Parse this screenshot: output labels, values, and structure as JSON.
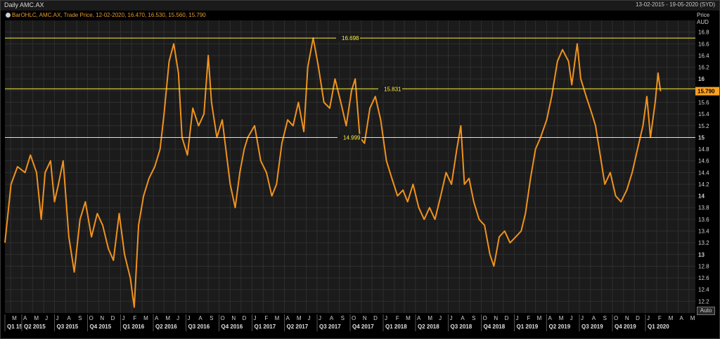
{
  "header": {
    "title": "Daily AMC.AX",
    "date_range": "13-02-2015 - 19-05-2020 (SYD)"
  },
  "legend": {
    "text": "BarOHLC, AMC.AX, Trade Price, 12-02-2020, 16.470, 16.530, 15.560, 15.790"
  },
  "axis": {
    "price_label": "Price",
    "currency": "AUD",
    "auto_label": "Auto"
  },
  "colors": {
    "background": "#000000",
    "grid": "#2e2e2e",
    "series": "#f0921e",
    "hline": "#ffef3a",
    "last_price_bg": "#ffa21e"
  },
  "chart_data": {
    "type": "line",
    "title": "Daily AMC.AX",
    "series_name": "AMC.AX",
    "ylabel": "Price AUD",
    "ylim": [
      12,
      17
    ],
    "y_ticks": [
      12.2,
      12.4,
      12.6,
      12.8,
      13,
      13.2,
      13.4,
      13.6,
      13.8,
      14,
      14.2,
      14.4,
      14.6,
      14.8,
      15,
      15.2,
      15.4,
      15.6,
      15.8,
      16,
      16.2,
      16.4,
      16.6,
      16.8
    ],
    "bold_y_ticks": [
      13,
      14,
      15,
      16
    ],
    "last_price": "15.790",
    "horizontal_lines": [
      {
        "value": 16.698,
        "label": "16.698"
      },
      {
        "value": 15.831,
        "label": "15.831"
      },
      {
        "value": 14.999,
        "label": "14.999"
      }
    ],
    "month_labels": [
      "M",
      "A",
      "M",
      "J",
      "J",
      "A",
      "S",
      "O",
      "N",
      "D",
      "J",
      "F",
      "M",
      "A",
      "M",
      "J",
      "J",
      "A",
      "S",
      "O",
      "N",
      "D",
      "J",
      "F",
      "M",
      "A",
      "M",
      "J",
      "J",
      "A",
      "S",
      "O",
      "N",
      "D",
      "J",
      "F",
      "M",
      "A",
      "M",
      "J",
      "J",
      "A",
      "S",
      "O",
      "N",
      "D",
      "J",
      "F",
      "M",
      "A",
      "M",
      "J",
      "J",
      "A",
      "S",
      "O",
      "N",
      "D",
      "J",
      "F",
      "M",
      "A",
      "M"
    ],
    "quarter_labels": [
      "Q1 15",
      "Q2 2015",
      "Q3 2015",
      "Q4 2015",
      "Q1 2016",
      "Q2 2016",
      "Q3 2016",
      "Q4 2016",
      "Q1 2017",
      "Q2 2017",
      "Q3 2017",
      "Q4 2017",
      "Q1 2018",
      "Q2 2018",
      "Q3 2018",
      "Q4 2018",
      "Q1 2019",
      "Q2 2019",
      "Q3 2019",
      "Q4 2019",
      "Q1 2020"
    ],
    "points": [
      [
        "2015-02-13",
        13.2
      ],
      [
        "2015-03-02",
        14.2
      ],
      [
        "2015-03-20",
        14.5
      ],
      [
        "2015-04-10",
        14.4
      ],
      [
        "2015-04-25",
        14.7
      ],
      [
        "2015-05-12",
        14.4
      ],
      [
        "2015-05-25",
        13.6
      ],
      [
        "2015-06-05",
        14.4
      ],
      [
        "2015-06-20",
        14.6
      ],
      [
        "2015-07-01",
        13.9
      ],
      [
        "2015-07-12",
        14.2
      ],
      [
        "2015-07-25",
        14.6
      ],
      [
        "2015-08-10",
        13.3
      ],
      [
        "2015-08-25",
        12.7
      ],
      [
        "2015-09-10",
        13.6
      ],
      [
        "2015-09-25",
        13.9
      ],
      [
        "2015-10-12",
        13.3
      ],
      [
        "2015-10-28",
        13.7
      ],
      [
        "2015-11-12",
        13.5
      ],
      [
        "2015-11-28",
        13.1
      ],
      [
        "2015-12-12",
        12.9
      ],
      [
        "2015-12-28",
        13.7
      ],
      [
        "2016-01-12",
        13.0
      ],
      [
        "2016-01-28",
        12.6
      ],
      [
        "2016-02-08",
        12.1
      ],
      [
        "2016-02-20",
        13.5
      ],
      [
        "2016-03-05",
        14.0
      ],
      [
        "2016-03-20",
        14.3
      ],
      [
        "2016-04-05",
        14.5
      ],
      [
        "2016-04-20",
        14.8
      ],
      [
        "2016-05-01",
        15.4
      ],
      [
        "2016-05-15",
        16.3
      ],
      [
        "2016-05-28",
        16.6
      ],
      [
        "2016-06-10",
        16.1
      ],
      [
        "2016-06-20",
        15.0
      ],
      [
        "2016-07-05",
        14.7
      ],
      [
        "2016-07-20",
        15.5
      ],
      [
        "2016-08-05",
        15.2
      ],
      [
        "2016-08-20",
        15.4
      ],
      [
        "2016-09-01",
        16.4
      ],
      [
        "2016-09-10",
        15.6
      ],
      [
        "2016-09-25",
        15.0
      ],
      [
        "2016-10-10",
        15.3
      ],
      [
        "2016-10-20",
        14.8
      ],
      [
        "2016-11-01",
        14.2
      ],
      [
        "2016-11-15",
        13.8
      ],
      [
        "2016-11-28",
        14.4
      ],
      [
        "2016-12-10",
        14.8
      ],
      [
        "2016-12-20",
        15.0
      ],
      [
        "2017-01-08",
        15.2
      ],
      [
        "2017-01-25",
        14.6
      ],
      [
        "2017-02-10",
        14.4
      ],
      [
        "2017-02-25",
        14.0
      ],
      [
        "2017-03-10",
        14.2
      ],
      [
        "2017-03-25",
        14.9
      ],
      [
        "2017-04-10",
        15.3
      ],
      [
        "2017-04-25",
        15.2
      ],
      [
        "2017-05-10",
        15.6
      ],
      [
        "2017-05-25",
        15.1
      ],
      [
        "2017-06-05",
        16.2
      ],
      [
        "2017-06-20",
        16.7
      ],
      [
        "2017-07-05",
        16.2
      ],
      [
        "2017-07-20",
        15.6
      ],
      [
        "2017-08-05",
        15.5
      ],
      [
        "2017-08-20",
        16.0
      ],
      [
        "2017-09-05",
        15.6
      ],
      [
        "2017-09-20",
        15.2
      ],
      [
        "2017-10-05",
        15.8
      ],
      [
        "2017-10-15",
        16.0
      ],
      [
        "2017-10-28",
        15.0
      ],
      [
        "2017-11-10",
        14.9
      ],
      [
        "2017-11-25",
        15.5
      ],
      [
        "2017-12-10",
        15.7
      ],
      [
        "2017-12-25",
        15.3
      ],
      [
        "2018-01-10",
        14.6
      ],
      [
        "2018-01-25",
        14.3
      ],
      [
        "2018-02-10",
        14.0
      ],
      [
        "2018-02-25",
        14.1
      ],
      [
        "2018-03-10",
        13.9
      ],
      [
        "2018-03-25",
        14.2
      ],
      [
        "2018-04-10",
        13.8
      ],
      [
        "2018-04-25",
        13.6
      ],
      [
        "2018-05-10",
        13.8
      ],
      [
        "2018-05-25",
        13.6
      ],
      [
        "2018-06-10",
        14.0
      ],
      [
        "2018-06-25",
        14.4
      ],
      [
        "2018-07-10",
        14.2
      ],
      [
        "2018-07-25",
        14.8
      ],
      [
        "2018-08-05",
        15.2
      ],
      [
        "2018-08-15",
        14.2
      ],
      [
        "2018-08-28",
        14.3
      ],
      [
        "2018-09-10",
        13.9
      ],
      [
        "2018-09-25",
        13.6
      ],
      [
        "2018-10-10",
        13.5
      ],
      [
        "2018-10-25",
        13.0
      ],
      [
        "2018-11-05",
        12.8
      ],
      [
        "2018-11-20",
        13.3
      ],
      [
        "2018-12-05",
        13.4
      ],
      [
        "2018-12-20",
        13.2
      ],
      [
        "2019-01-05",
        13.3
      ],
      [
        "2019-01-20",
        13.4
      ],
      [
        "2019-02-01",
        13.7
      ],
      [
        "2019-02-15",
        14.3
      ],
      [
        "2019-03-01",
        14.8
      ],
      [
        "2019-03-15",
        15.0
      ],
      [
        "2019-04-01",
        15.3
      ],
      [
        "2019-04-15",
        15.7
      ],
      [
        "2019-05-01",
        16.3
      ],
      [
        "2019-05-15",
        16.5
      ],
      [
        "2019-06-01",
        16.3
      ],
      [
        "2019-06-10",
        15.9
      ],
      [
        "2019-06-25",
        16.6
      ],
      [
        "2019-07-05",
        16.0
      ],
      [
        "2019-07-20",
        15.7
      ],
      [
        "2019-08-05",
        15.4
      ],
      [
        "2019-08-15",
        15.2
      ],
      [
        "2019-08-28",
        14.7
      ],
      [
        "2019-09-10",
        14.2
      ],
      [
        "2019-09-25",
        14.4
      ],
      [
        "2019-10-10",
        14.0
      ],
      [
        "2019-10-25",
        13.9
      ],
      [
        "2019-11-10",
        14.1
      ],
      [
        "2019-11-25",
        14.4
      ],
      [
        "2019-12-10",
        14.8
      ],
      [
        "2019-12-25",
        15.2
      ],
      [
        "2020-01-05",
        15.7
      ],
      [
        "2020-01-15",
        15.0
      ],
      [
        "2020-01-28",
        15.6
      ],
      [
        "2020-02-05",
        16.1
      ],
      [
        "2020-02-12",
        15.79
      ]
    ]
  }
}
